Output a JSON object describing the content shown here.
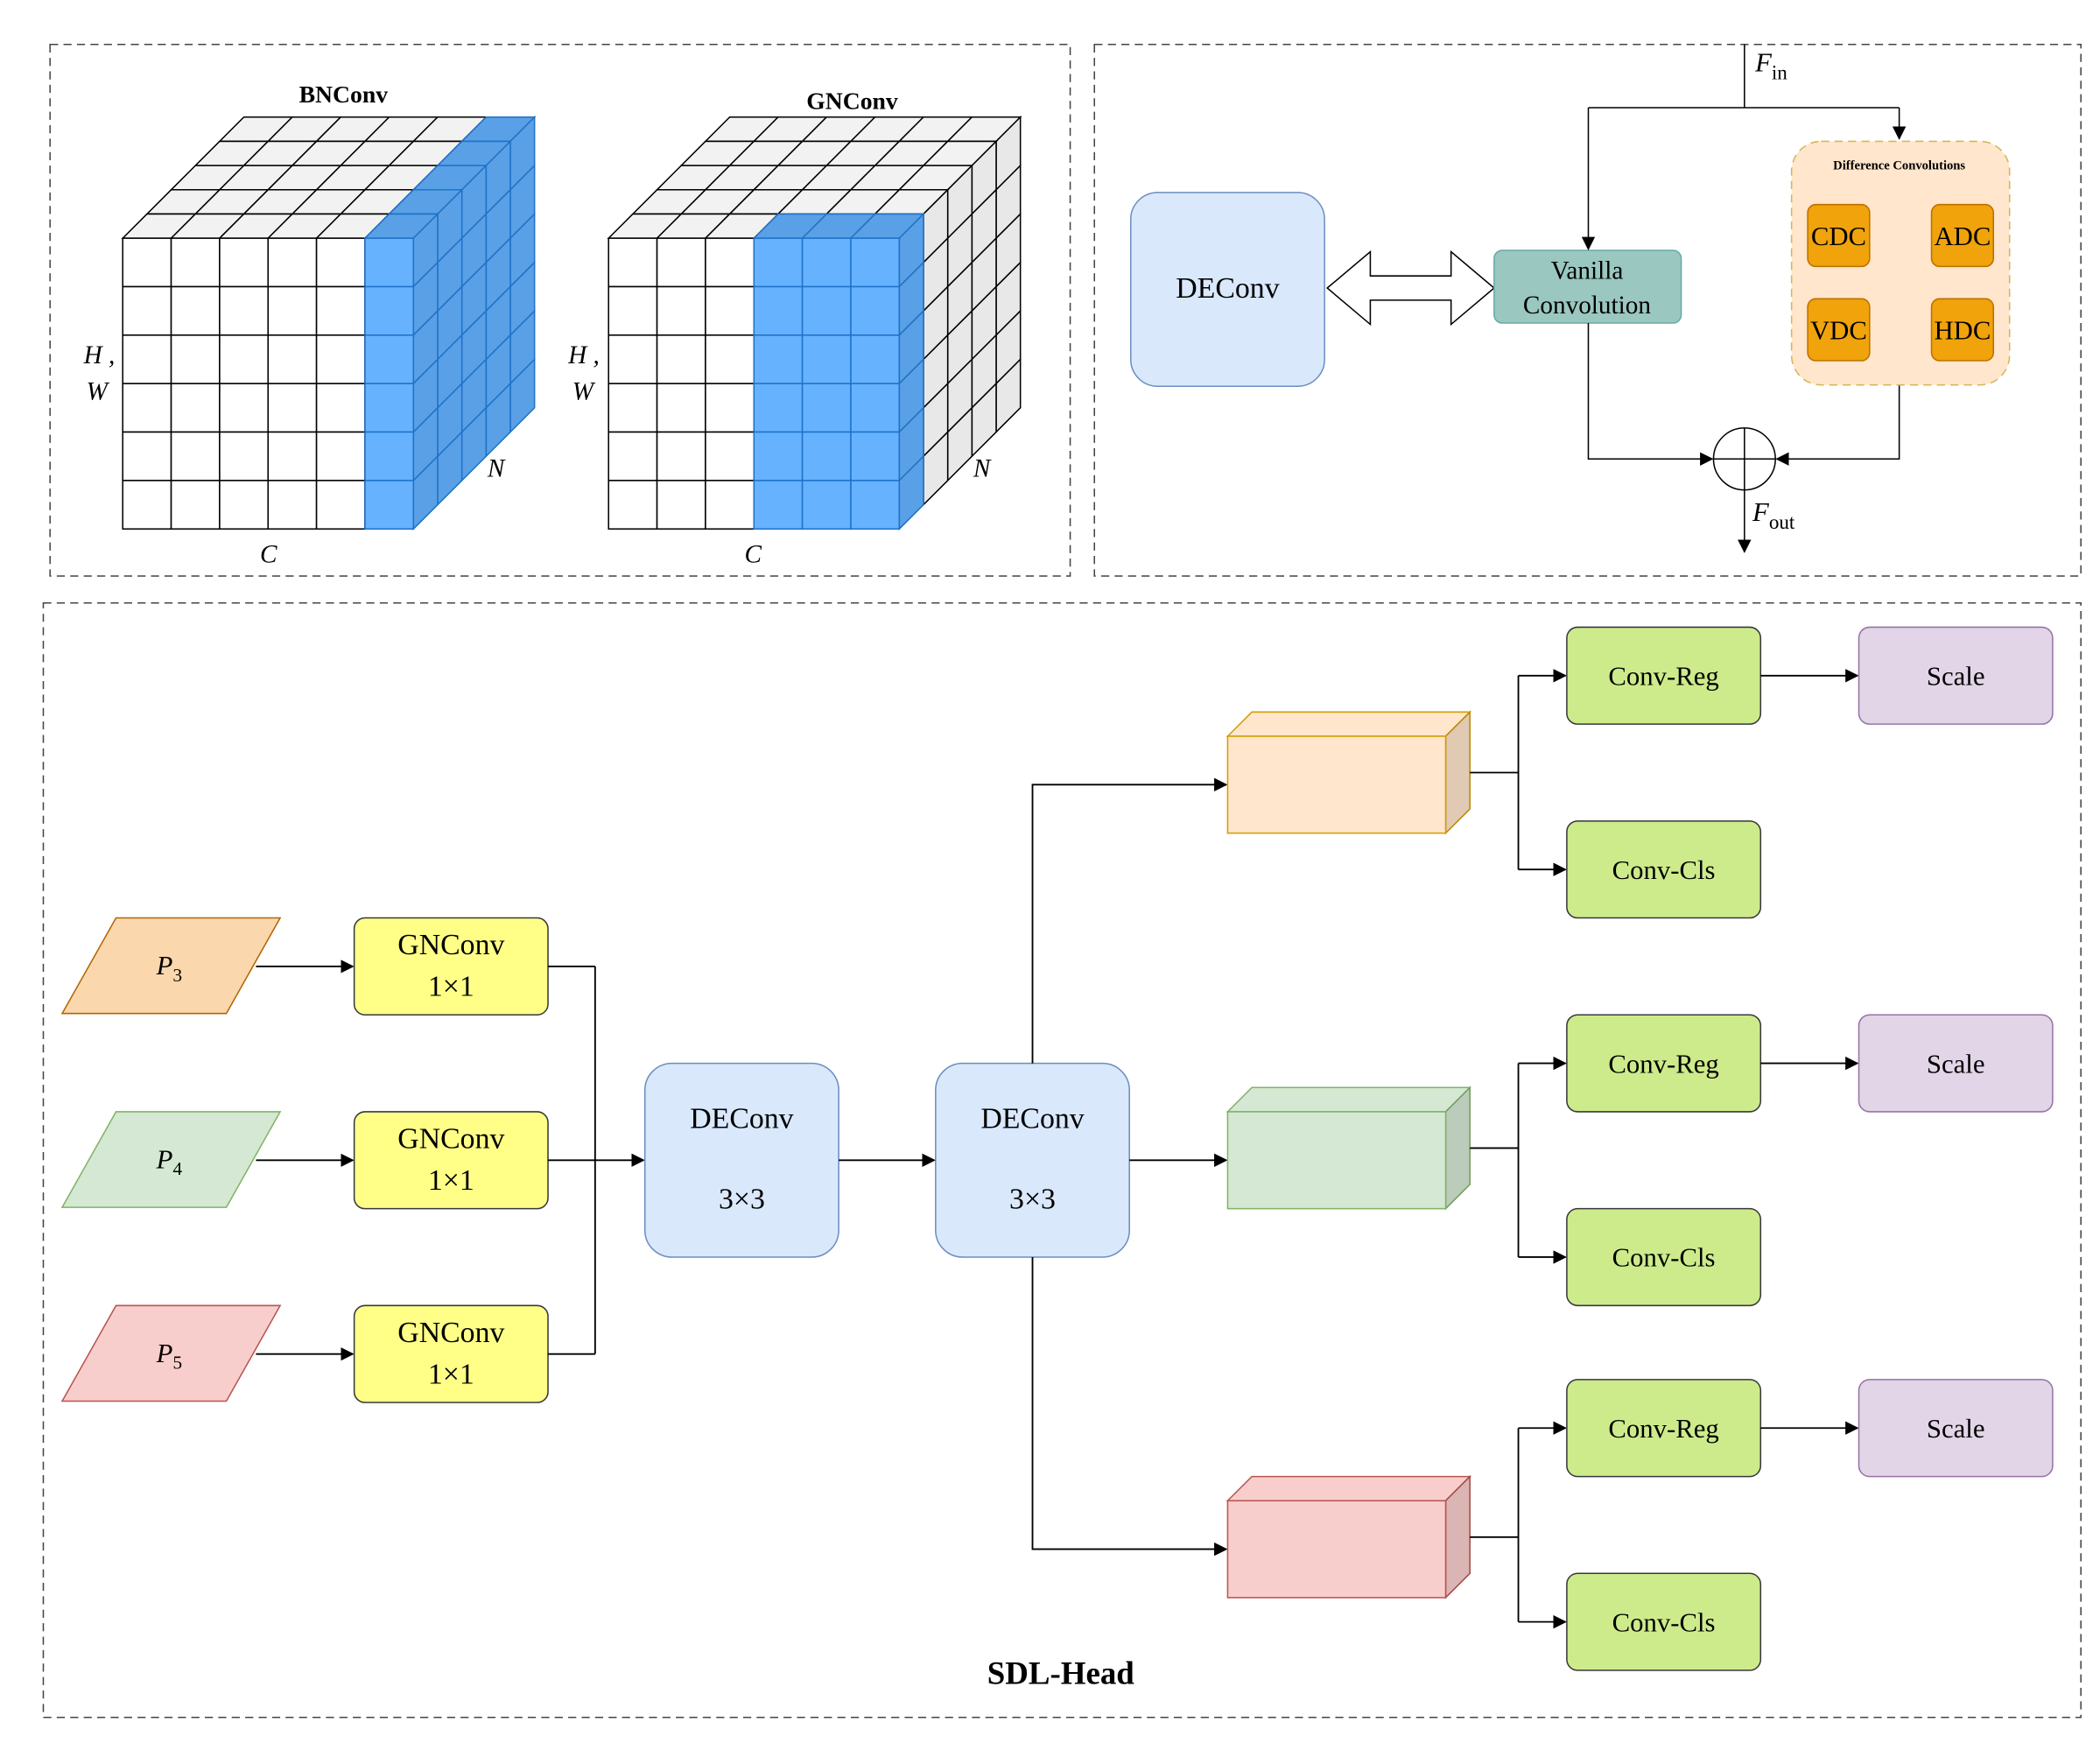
{
  "top_left": {
    "bnconv": {
      "title": "BNConv",
      "h_label": "H ,",
      "w_label": "W",
      "c_label": "C",
      "n_label": "N"
    },
    "gnconv": {
      "title": "GNConv",
      "h_label": "H ,",
      "w_label": "W",
      "c_label": "C",
      "n_label": "N"
    }
  },
  "top_right": {
    "deconv": "DEConv",
    "vanilla_line1": "Vanilla",
    "vanilla_line2": "Convolution",
    "f_in": "F",
    "f_in_sub": "in",
    "f_out": "F",
    "f_out_sub": "out",
    "diff_title": "Difference Convolutions",
    "diff_items": [
      "CDC",
      "ADC",
      "VDC",
      "HDC"
    ]
  },
  "bottom": {
    "inputs": [
      {
        "label": "P",
        "sub": "3",
        "fill": "#fad7ac",
        "stroke": "#b46504"
      },
      {
        "label": "P",
        "sub": "4",
        "fill": "#d5e8d4",
        "stroke": "#82b366"
      },
      {
        "label": "P",
        "sub": "5",
        "fill": "#f8cecc",
        "stroke": "#b85450"
      }
    ],
    "gnconv_line1": "GNConv",
    "gnconv_line2": "1×1",
    "deconv1_line1": "DEConv",
    "deconv1_line2": "3×3",
    "deconv2_line1": "DEConv",
    "deconv2_line2": "3×3",
    "feature_colors": [
      {
        "fill": "#ffe6cc",
        "stroke": "#d79b00"
      },
      {
        "fill": "#d5e8d4",
        "stroke": "#82b366"
      },
      {
        "fill": "#f8cecc",
        "stroke": "#b85450"
      }
    ],
    "conv_reg": "Conv-Reg",
    "conv_cls": "Conv-Cls",
    "scale": "Scale",
    "title": "SDL-Head"
  }
}
